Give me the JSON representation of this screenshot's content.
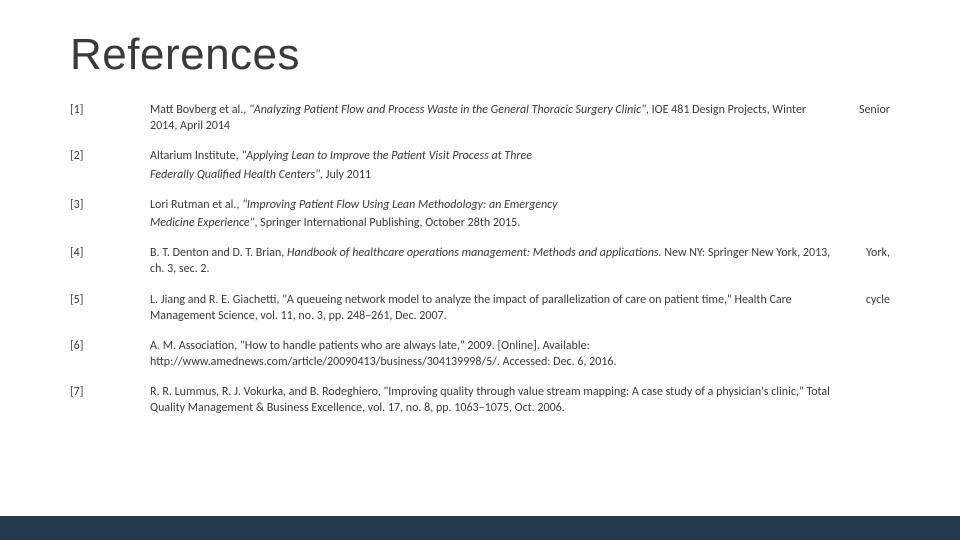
{
  "colors": {
    "text": "#3a3a3a",
    "background": "#ffffff",
    "bottom_bar": "#213a4f"
  },
  "title": "References",
  "references": [
    {
      "num": "[1]",
      "pre": "Matt Bovberg et al., ",
      "italic": "\"Analyzing Patient Flow and Process Waste in the General Thoracic Surgery Clinic\"",
      "post": ", IOE 481 Design Projects, Winter 2014, April 2014",
      "right": "Senior",
      "cont_italic": "",
      "cont_post": ""
    },
    {
      "num": "[2]",
      "pre": "Altarium Institute, ",
      "italic": "\"Applying Lean to Improve the Patient Visit Process at Three",
      "post": "",
      "right": "",
      "cont_italic": "Federally Qualified Health Centers\"",
      "cont_post": ", July 2011"
    },
    {
      "num": "[3]",
      "pre": "Lori Rutman et al., ",
      "italic": "\"Improving Patient Flow Using Lean Methodology: an Emergency",
      "post": "",
      "right": "",
      "cont_italic": "Medicine Experience\"",
      "cont_post": ", Springer International Publishing, October 28th 2015."
    },
    {
      "num": "[4]",
      "pre": "B. T. Denton and D. T. Brian, ",
      "italic": "Handbook of healthcare operations management: Methods and applications.",
      "post": " New NY: Springer New York, 2013, ch. 3, sec. 2.",
      "right": "York,",
      "cont_italic": "",
      "cont_post": ""
    },
    {
      "num": "[5]",
      "pre": "L. Jiang and R. E. Giachetti, \"A queueing network model to analyze the impact of parallelization of care on patient time,\" Health Care Management Science, vol. 11, no. 3, pp. 248–261, Dec. 2007.",
      "italic": "",
      "post": "",
      "right": "cycle",
      "cont_italic": "",
      "cont_post": ""
    },
    {
      "num": "[6]",
      "pre": "A. M. Association, \"How to handle patients who are always late,\" 2009. [Online]. Available: http://www.amednews.com/article/20090413/business/304139998/5/. Accessed: Dec. 6, 2016.",
      "italic": "",
      "post": "",
      "right": "",
      "cont_italic": "",
      "cont_post": ""
    },
    {
      "num": "[7]",
      "pre": "R. R. Lummus, R. J. Vokurka, and B. Rodeghiero, \"Improving quality through value stream mapping: A case study of a physician's clinic,\" Total Quality Management & Business Excellence, vol. 17, no. 8, pp. 1063–1075, Oct. 2006.",
      "italic": "",
      "post": "",
      "right": "",
      "cont_italic": "",
      "cont_post": ""
    }
  ]
}
